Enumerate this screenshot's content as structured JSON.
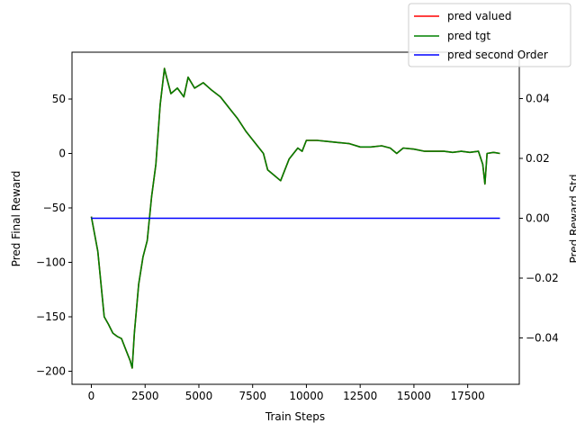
{
  "chart_data": {
    "type": "line",
    "xlabel": "Train Steps",
    "ylabel": "Pred Final Reward",
    "y2label": "Pred Reward Std",
    "xlim": [
      -900,
      19900
    ],
    "ylim": [
      -212,
      93
    ],
    "y2lim": [
      -0.0555,
      0.0555
    ],
    "x_ticks": [
      0,
      2500,
      5000,
      7500,
      10000,
      12500,
      15000,
      17500
    ],
    "x_tick_labels": [
      "0",
      "2500",
      "5000",
      "7500",
      "10000",
      "12500",
      "15000",
      "17500"
    ],
    "y_ticks": [
      50,
      0,
      -50,
      -100,
      -150,
      -200
    ],
    "y_tick_labels": [
      "50",
      "0",
      "−50",
      "−100",
      "−150",
      "−200"
    ],
    "y2_ticks": [
      0.04,
      0.02,
      0.0,
      -0.02,
      -0.04
    ],
    "y2_tick_labels": [
      "0.04",
      "0.02",
      "0.00",
      "−0.02",
      "−0.04"
    ],
    "grid": false,
    "legend_position": "top-right",
    "legend": [
      {
        "name": "pred valued",
        "color": "#ff0000"
      },
      {
        "name": "pred tgt",
        "color": "#008000"
      },
      {
        "name": "pred second Order",
        "color": "#0000ff"
      }
    ],
    "series": [
      {
        "name": "pred valued",
        "axis": "left",
        "color": "#ff0000",
        "x": [
          0,
          300,
          600,
          800,
          1000,
          1200,
          1400,
          1600,
          1800,
          1900,
          2000,
          2200,
          2400,
          2600,
          2800,
          3000,
          3200,
          3400,
          3500,
          3700,
          4000,
          4300,
          4500,
          4800,
          5200,
          5600,
          6000,
          6400,
          6800,
          7200,
          7600,
          8000,
          8200,
          8500,
          8800,
          9200,
          9600,
          9800,
          10000,
          10500,
          11000,
          11500,
          12000,
          12500,
          13000,
          13500,
          13900,
          14200,
          14500,
          15000,
          15500,
          16000,
          16400,
          16800,
          17200,
          17600,
          18000,
          18200,
          18300,
          18400,
          18700,
          19000
        ],
        "y": [
          -58,
          -90,
          -150,
          -157,
          -165,
          -168,
          -170,
          -180,
          -190,
          -197,
          -165,
          -120,
          -95,
          -80,
          -40,
          -10,
          45,
          78,
          70,
          55,
          60,
          52,
          70,
          60,
          65,
          58,
          52,
          42,
          32,
          20,
          10,
          0,
          -15,
          -20,
          -25,
          -5,
          5,
          2,
          12,
          12,
          11,
          10,
          9,
          6,
          6,
          7,
          5,
          0,
          5,
          4,
          2,
          2,
          2,
          1,
          2,
          1,
          2,
          -10,
          -28,
          0,
          1,
          0
        ]
      },
      {
        "name": "pred tgt",
        "axis": "left",
        "color": "#008000",
        "x": [
          0,
          300,
          600,
          800,
          1000,
          1200,
          1400,
          1600,
          1800,
          1900,
          2000,
          2200,
          2400,
          2600,
          2800,
          3000,
          3200,
          3400,
          3500,
          3700,
          4000,
          4300,
          4500,
          4800,
          5200,
          5600,
          6000,
          6400,
          6800,
          7200,
          7600,
          8000,
          8200,
          8500,
          8800,
          9200,
          9600,
          9800,
          10000,
          10500,
          11000,
          11500,
          12000,
          12500,
          13000,
          13500,
          13900,
          14200,
          14500,
          15000,
          15500,
          16000,
          16400,
          16800,
          17200,
          17600,
          18000,
          18200,
          18300,
          18400,
          18700,
          19000
        ],
        "y": [
          -58,
          -90,
          -150,
          -157,
          -165,
          -168,
          -170,
          -180,
          -190,
          -197,
          -165,
          -120,
          -95,
          -80,
          -40,
          -10,
          45,
          78,
          70,
          55,
          60,
          52,
          70,
          60,
          65,
          58,
          52,
          42,
          32,
          20,
          10,
          0,
          -15,
          -20,
          -25,
          -5,
          5,
          2,
          12,
          12,
          11,
          10,
          9,
          6,
          6,
          7,
          5,
          0,
          5,
          4,
          2,
          2,
          2,
          1,
          2,
          1,
          2,
          -10,
          -28,
          0,
          1,
          0
        ]
      },
      {
        "name": "pred second Order",
        "axis": "right",
        "color": "#0000ff",
        "x": [
          0,
          19000
        ],
        "y": [
          0.0,
          0.0
        ]
      }
    ]
  }
}
